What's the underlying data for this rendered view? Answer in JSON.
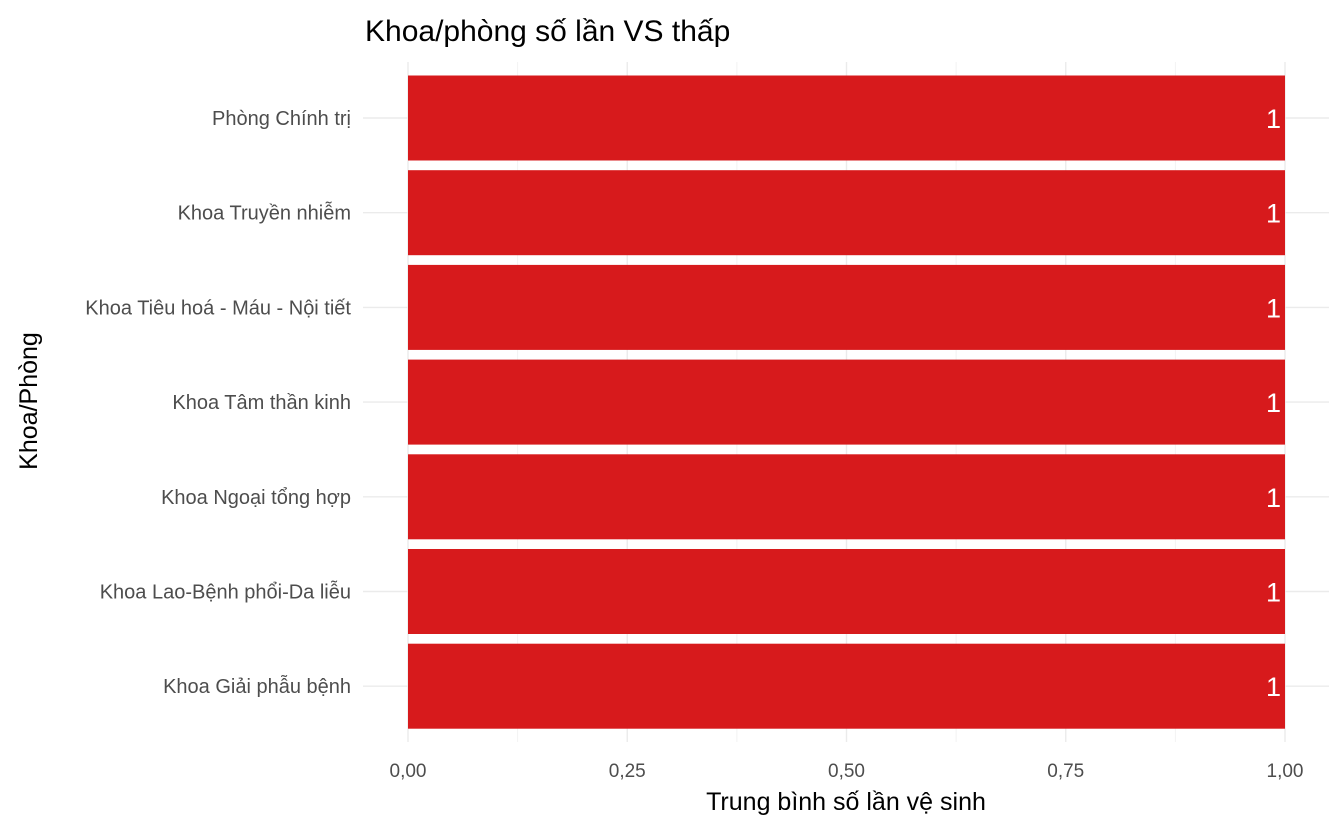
{
  "chart_data": {
    "type": "bar",
    "orientation": "horizontal",
    "title": "Khoa/phòng số lần VS thấp",
    "xlabel": "Trung bình số lần vệ sinh",
    "ylabel": "Khoa/Phòng",
    "categories": [
      "Phòng Chính trị",
      "Khoa Truyền nhiễm",
      "Khoa Tiêu hoá - Máu - Nội tiết",
      "Khoa Tâm thần kinh",
      "Khoa Ngoại tổng hợp",
      "Khoa Lao-Bệnh phổi-Da liễu",
      "Khoa Giải phẫu bệnh"
    ],
    "values": [
      1,
      1,
      1,
      1,
      1,
      1,
      1
    ],
    "data_labels": [
      "1",
      "1",
      "1",
      "1",
      "1",
      "1",
      "1"
    ],
    "xlim": [
      0,
      1
    ],
    "xticks": [
      0,
      0.25,
      0.5,
      0.75,
      1
    ],
    "xtick_labels": [
      "0,00",
      "0,25",
      "0,50",
      "0,75",
      "1,00"
    ],
    "grid": true,
    "legend": "none",
    "bar_color": "#d71a1c"
  }
}
